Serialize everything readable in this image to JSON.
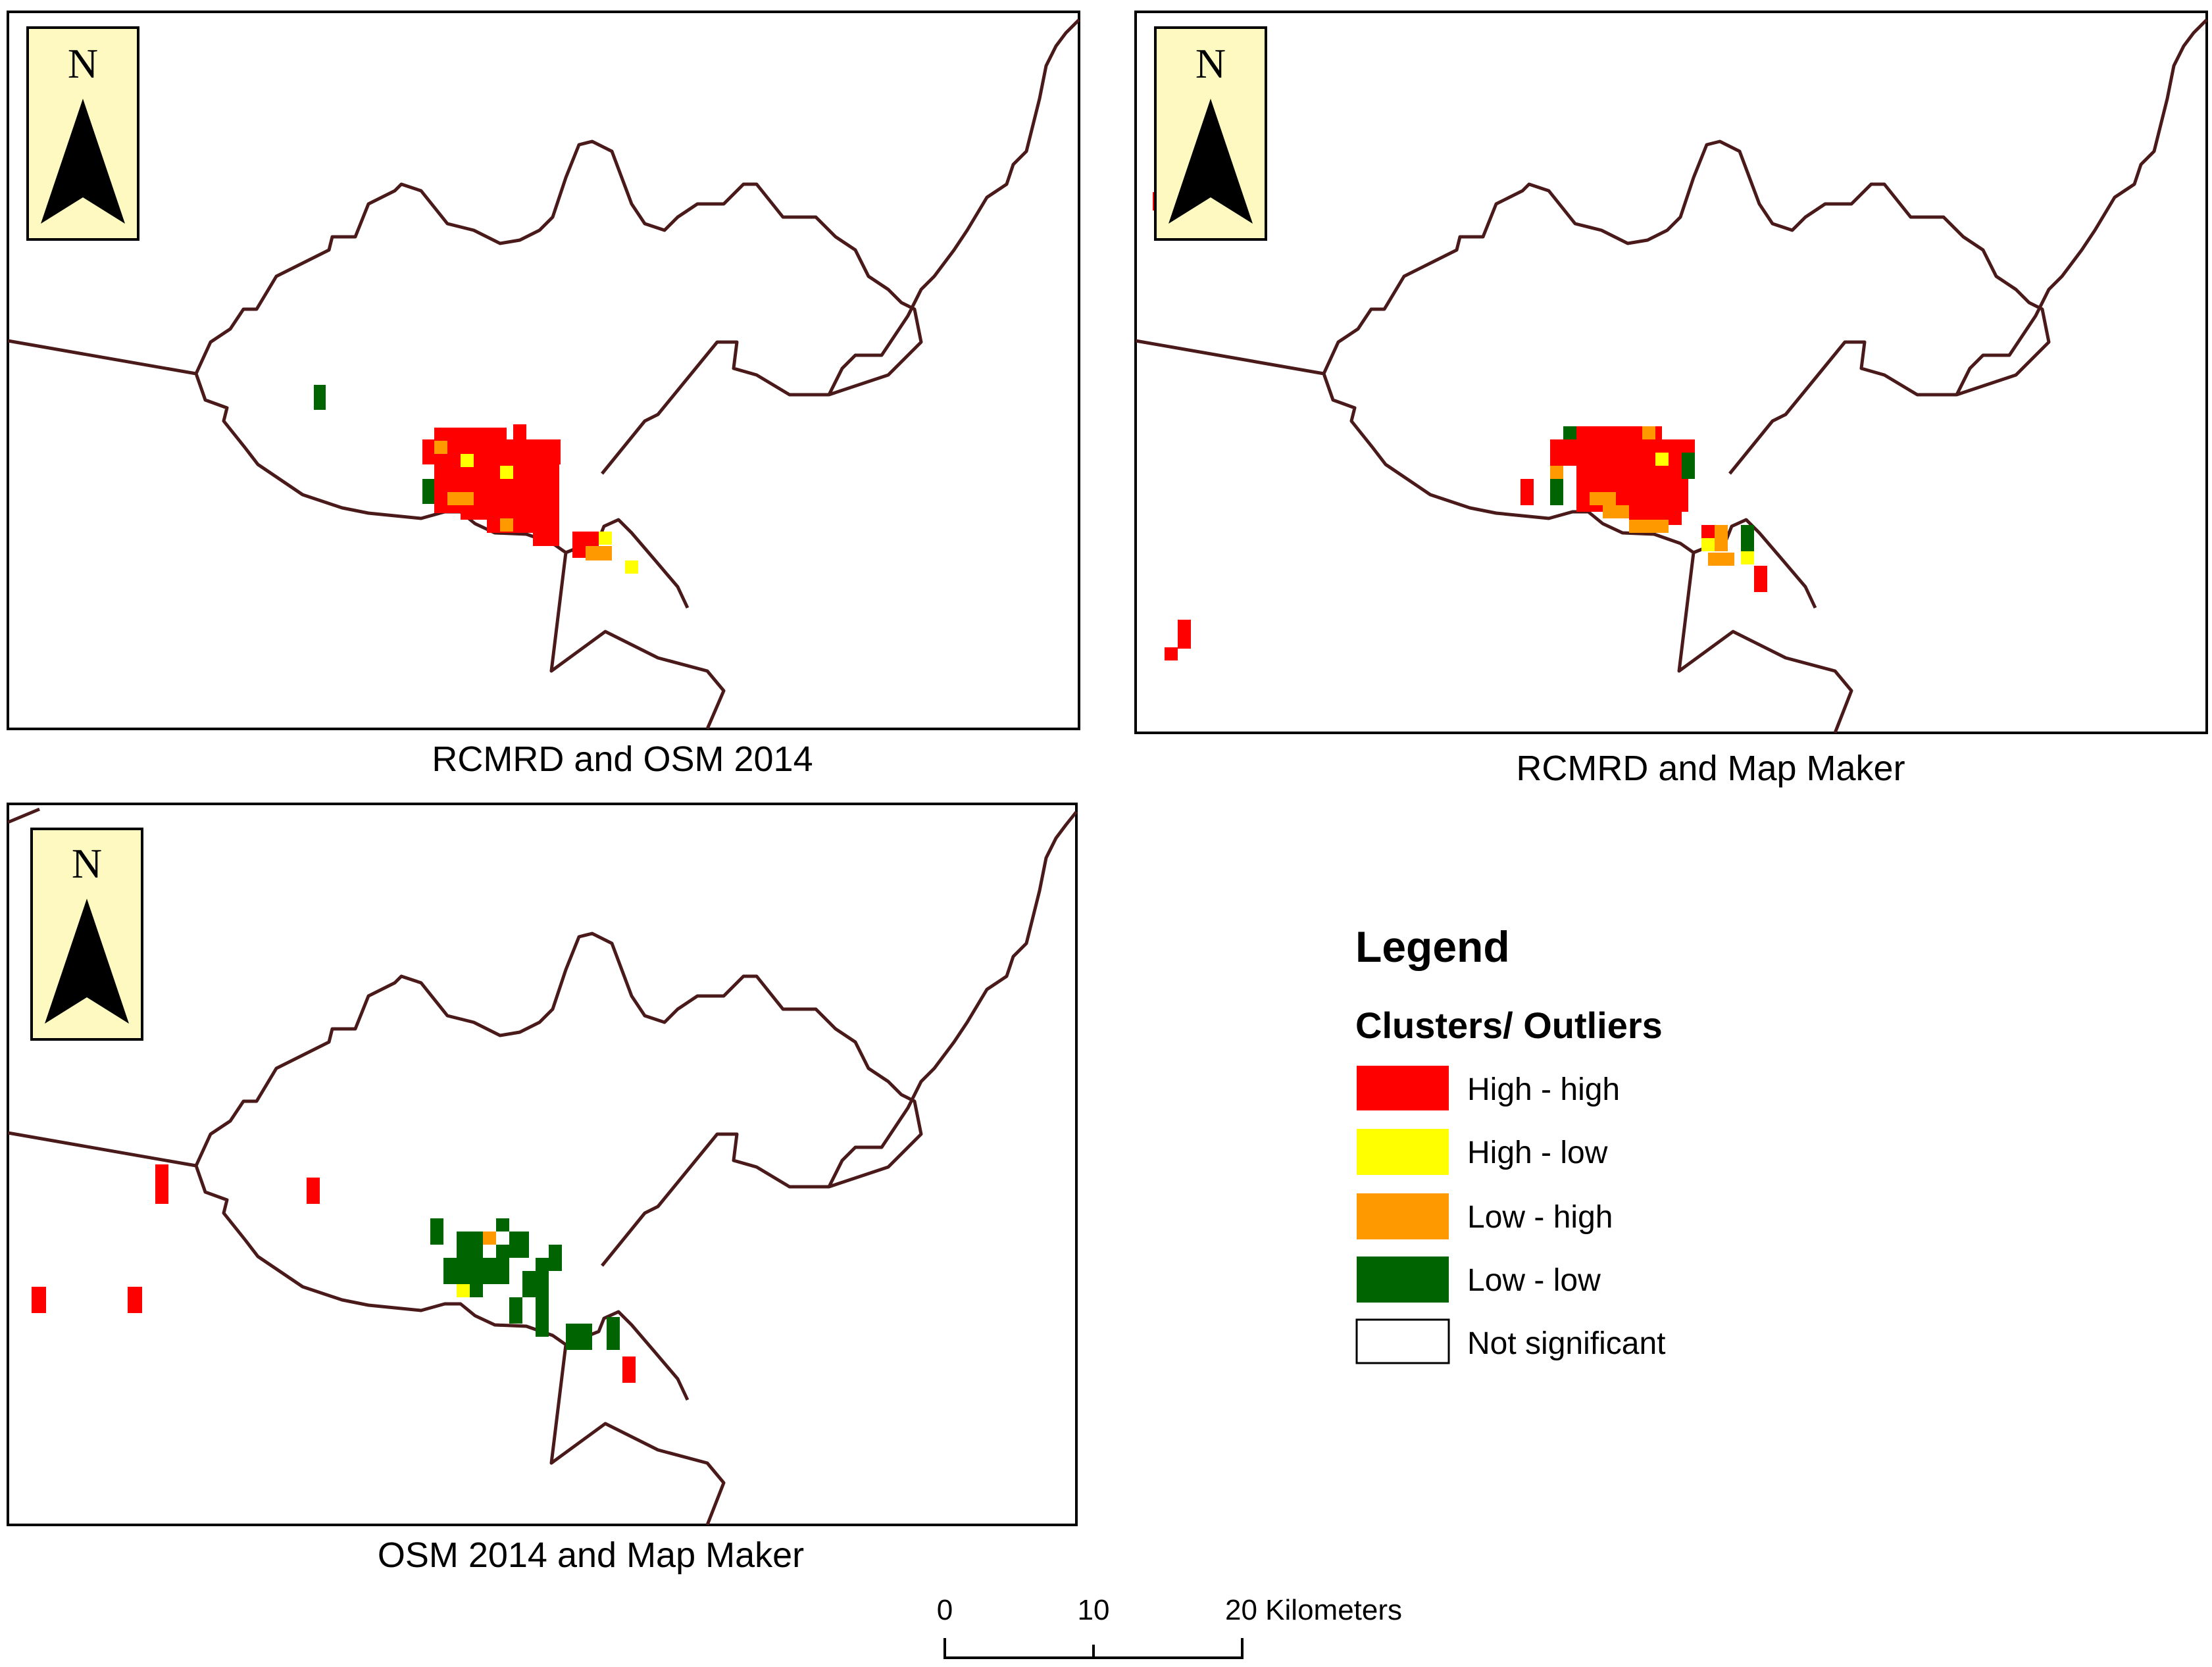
{
  "map_panels": [
    {
      "id": "rcmrd-osm",
      "caption": "RCMRD and OSM 2014",
      "north_label": "N",
      "cells": [
        {
          "class": "low_low"
        },
        {
          "class": "high_high"
        },
        {
          "class": "high_high"
        },
        {
          "class": "high_high"
        },
        {
          "class": "high_high"
        },
        {
          "class": "high_high"
        },
        {
          "class": "high_high"
        },
        {
          "class": "high_high"
        },
        {
          "class": "low_high"
        },
        {
          "class": "high_low"
        },
        {
          "class": "low_low"
        },
        {
          "class": "low_high"
        },
        {
          "class": "high_low"
        },
        {
          "class": "low_high"
        },
        {
          "class": "high_high"
        },
        {
          "class": "high_low"
        },
        {
          "class": "low_high"
        },
        {
          "class": "high_low"
        }
      ]
    },
    {
      "id": "rcmrd-mapmaker",
      "caption": "RCMRD and Map Maker",
      "north_label": "N",
      "cells": [
        {
          "class": "high_high"
        },
        {
          "class": "high_high"
        },
        {
          "class": "high_high"
        },
        {
          "class": "high_high"
        },
        {
          "class": "high_high"
        },
        {
          "class": "high_high"
        },
        {
          "class": "high_high"
        },
        {
          "class": "high_high"
        },
        {
          "class": "low_high"
        },
        {
          "class": "low_high"
        },
        {
          "class": "low_high"
        },
        {
          "class": "high_low"
        },
        {
          "class": "low_low"
        },
        {
          "class": "low_low"
        },
        {
          "class": "low_low"
        },
        {
          "class": "high_high"
        },
        {
          "class": "high_high"
        },
        {
          "class": "low_high"
        },
        {
          "class": "low_high"
        },
        {
          "class": "low_high"
        },
        {
          "class": "high_high"
        },
        {
          "class": "low_high"
        },
        {
          "class": "high_low"
        },
        {
          "class": "low_low"
        },
        {
          "class": "high_low"
        },
        {
          "class": "high_high"
        },
        {
          "class": "high_high"
        },
        {
          "class": "high_high"
        }
      ]
    },
    {
      "id": "osm-mapmaker",
      "caption": "OSM 2014 and Map Maker",
      "north_label": "N",
      "cells": [
        {
          "class": "high_high"
        },
        {
          "class": "high_high"
        },
        {
          "class": "high_high"
        },
        {
          "class": "high_high"
        },
        {
          "class": "low_low"
        },
        {
          "class": "low_low"
        },
        {
          "class": "low_low"
        },
        {
          "class": "low_low"
        },
        {
          "class": "low_low"
        },
        {
          "class": "low_high"
        },
        {
          "class": "high_low"
        },
        {
          "class": "low_low"
        },
        {
          "class": "low_low"
        },
        {
          "class": "low_low"
        },
        {
          "class": "low_low"
        },
        {
          "class": "low_low"
        },
        {
          "class": "low_low"
        },
        {
          "class": "low_low"
        },
        {
          "class": "low_low"
        },
        {
          "class": "low_low"
        },
        {
          "class": "low_low"
        },
        {
          "class": "high_high"
        }
      ]
    }
  ],
  "legend": {
    "title": "Legend",
    "subtitle": "Clusters/ Outliers",
    "items": [
      {
        "key": "high_high",
        "label": "High - high",
        "color": "#ff0000"
      },
      {
        "key": "high_low",
        "label": "High - low",
        "color": "#ffff00"
      },
      {
        "key": "low_high",
        "label": "Low - high",
        "color": "#ff9900"
      },
      {
        "key": "low_low",
        "label": "Low - low",
        "color": "#006400"
      },
      {
        "key": "not_significant",
        "label": "Not significant",
        "color": "#ffffff"
      }
    ]
  },
  "scale_bar": {
    "labels": [
      "0",
      "10",
      "20 Kilometers"
    ],
    "values_km": [
      0,
      10,
      20
    ]
  },
  "colors": {
    "boundary": "#4a1a1a",
    "north_box": "#fdf9c1"
  }
}
